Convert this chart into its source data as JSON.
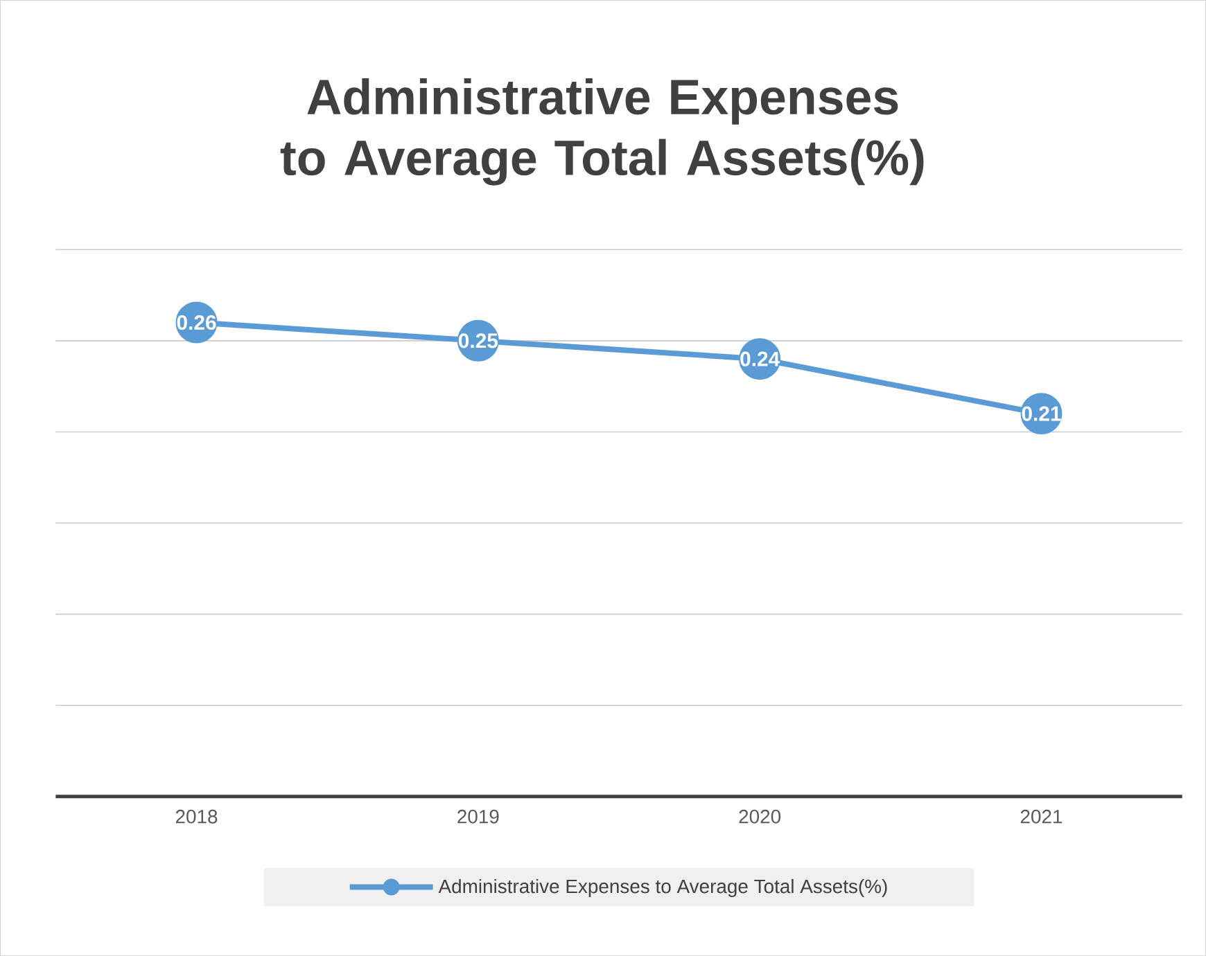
{
  "chart_data": {
    "type": "line",
    "title": "Administrative Expenses to Average Total Assets(%)",
    "categories": [
      "2018",
      "2019",
      "2020",
      "2021"
    ],
    "series": [
      {
        "name": "Administrative Expenses to Average Total Assets(%)",
        "color": "#5b9bd5",
        "values": [
          0.26,
          0.25,
          0.24,
          0.21
        ]
      }
    ],
    "ylim": [
      0,
      0.3
    ],
    "yticks": [
      {
        "value": 0,
        "label": null
      },
      {
        "value": 0.05,
        "label": null
      },
      {
        "value": 0.1,
        "label": null
      },
      {
        "value": 0.15,
        "label": null
      },
      {
        "value": 0.2,
        "label": null
      },
      {
        "value": 0.25,
        "label": null
      },
      {
        "value": 0.3,
        "label": null
      }
    ],
    "tick_labels": "x",
    "grid": "y",
    "legend": "bottom",
    "marker": "circle",
    "line_style": "solid",
    "data_labels": true
  }
}
